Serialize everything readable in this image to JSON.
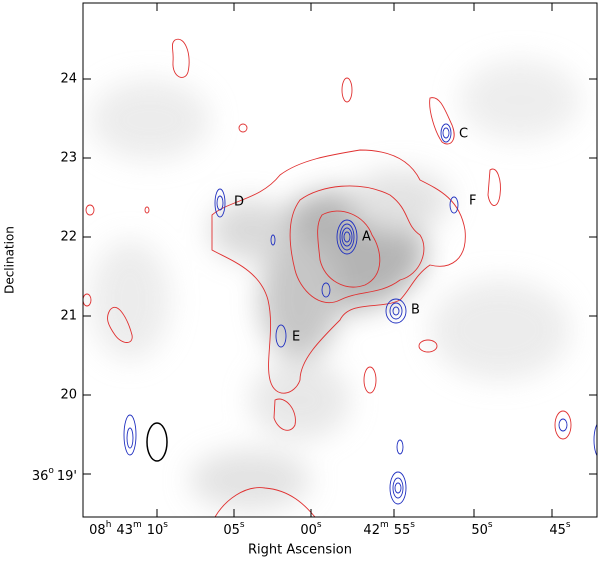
{
  "axes": {
    "x_label": "Right Ascension",
    "y_label": "Declination",
    "y_ticks": [
      "24",
      "23",
      "22",
      "21",
      "20"
    ],
    "y_tick_last": {
      "deg": "36",
      "deg_sup": "o",
      "min": "19'"
    },
    "x_ticks": [
      [
        "08",
        "h",
        "43",
        "m",
        "10",
        "s"
      ],
      [
        "05",
        "s"
      ],
      [
        "00",
        "s"
      ],
      [
        "42",
        "m",
        "55",
        "s"
      ],
      [
        "50",
        "s"
      ],
      [
        "45",
        "s"
      ]
    ]
  },
  "sources": [
    "A",
    "B",
    "C",
    "D",
    "E",
    "F"
  ]
}
